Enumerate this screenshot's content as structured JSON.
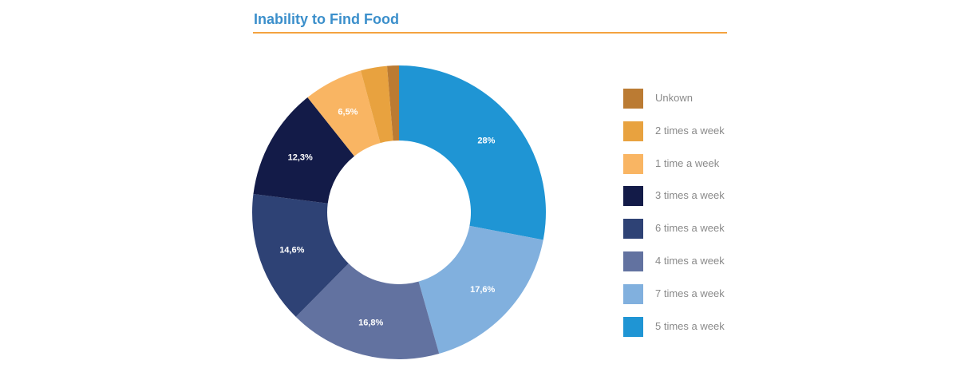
{
  "title": "Inability to Find Food",
  "chart_data": {
    "type": "pie",
    "donut": true,
    "title": "Inability to Find Food",
    "legend_position": "right",
    "slices": [
      {
        "name": "5 times a week",
        "value": 28.0,
        "label": "28%",
        "color": "#1f95d4"
      },
      {
        "name": "7 times a week",
        "value": 17.6,
        "label": "17,6%",
        "color": "#81b0de"
      },
      {
        "name": "4 times a week",
        "value": 16.8,
        "label": "16,8%",
        "color": "#6272a0"
      },
      {
        "name": "6 times a week",
        "value": 14.6,
        "label": "14,6%",
        "color": "#2e4275"
      },
      {
        "name": "3 times a week",
        "value": 12.3,
        "label": "12,3%",
        "color": "#131b48"
      },
      {
        "name": "1 time a week",
        "value": 6.5,
        "label": "6,5%",
        "color": "#f9b563"
      },
      {
        "name": "2 times a week",
        "value": 2.9,
        "label": "",
        "color": "#e8a23f"
      },
      {
        "name": "Unkown",
        "value": 1.3,
        "label": "",
        "color": "#bb7b33"
      }
    ],
    "legend_order": [
      "Unkown",
      "2 times a week",
      "1 time a week",
      "3 times a week",
      "6 times a week",
      "4 times a week",
      "7 times a week",
      "5 times a week"
    ]
  }
}
